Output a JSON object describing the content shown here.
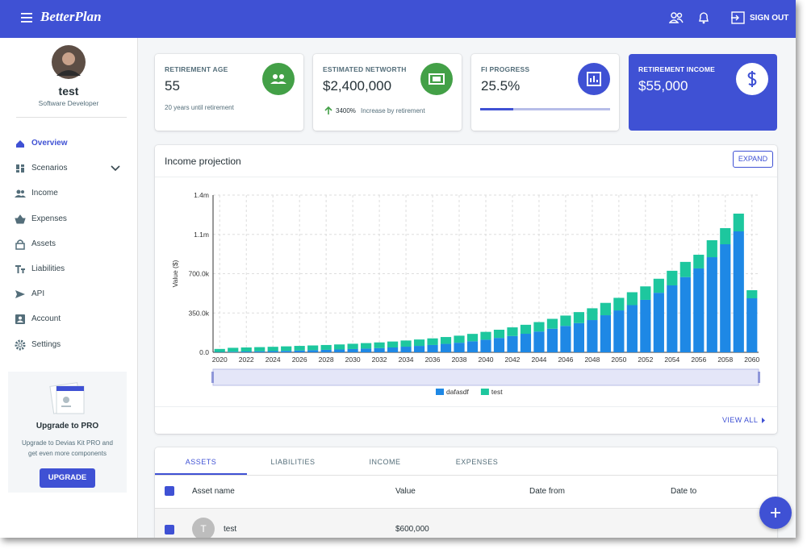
{
  "header": {
    "brand": "BetterPlan",
    "sign_out": "SIGN OUT"
  },
  "sidebar": {
    "user": {
      "name": "test",
      "role": "Software Developer"
    },
    "nav": [
      "Overview",
      "Scenarios",
      "Income",
      "Expenses",
      "Assets",
      "Liabilities",
      "API",
      "Account",
      "Settings"
    ],
    "promo": {
      "title": "Upgrade to PRO",
      "text": "Upgrade to Devias Kit PRO and get even more components",
      "button": "UPGRADE"
    }
  },
  "cards": [
    {
      "label": "RETIREMENT AGE",
      "value": "55",
      "note": "20 years until retirement"
    },
    {
      "label": "ESTIMATED NETWORTH",
      "value": "$2,400,000",
      "change": "3400%",
      "note": "Increase by retirement"
    },
    {
      "label": "FI PROGRESS",
      "value": "25.5%"
    },
    {
      "label": "RETIREMENT INCOME",
      "value": "$55,000"
    }
  ],
  "chart_panel": {
    "title": "Income projection",
    "expand": "EXPAND",
    "view_all": "VIEW ALL"
  },
  "chart_data": {
    "type": "bar",
    "stacked": true,
    "y_label": "Value ($)",
    "categories": [
      2020,
      null,
      2022,
      null,
      2024,
      null,
      2026,
      null,
      2028,
      null,
      2030,
      null,
      2032,
      null,
      2034,
      null,
      2036,
      null,
      2038,
      null,
      2040,
      null,
      2042,
      null,
      2044,
      null,
      2046,
      null,
      2048,
      null,
      2050,
      null,
      2052,
      null,
      2054,
      null,
      2056,
      null,
      2058,
      null,
      2060
    ],
    "series": [
      {
        "name": "dafasdf",
        "color": "#1e88e5",
        "values": [
          3000,
          5000,
          7000,
          9000,
          11000,
          13000,
          16000,
          19000,
          22000,
          25000,
          29000,
          33000,
          37000,
          43000,
          50000,
          57000,
          65000,
          75000,
          85000,
          98000,
          112000,
          128000,
          145000,
          165000,
          185000,
          210000,
          235000,
          260000,
          287000,
          330000,
          373000,
          420000,
          467000,
          530000,
          596000,
          670000,
          747000,
          847000,
          962000,
          1077000,
          481000
        ]
      },
      {
        "name": "test",
        "color": "#1dc79e",
        "values": [
          27000,
          35000,
          36000,
          37000,
          38000,
          40000,
          41000,
          42000,
          43000,
          45000,
          47000,
          49000,
          51000,
          53000,
          55000,
          57000,
          59000,
          61000,
          63000,
          66000,
          70000,
          73000,
          77000,
          80000,
          84000,
          88000,
          92000,
          98000,
          105000,
          110000,
          112000,
          115000,
          120000,
          125000,
          130000,
          135000,
          122000,
          151000,
          144000,
          158000,
          72000
        ]
      }
    ],
    "ylim": [
      0,
      1400000
    ],
    "yticks": [
      {
        "value": 0,
        "label": "0.0"
      },
      {
        "value": 350000,
        "label": "350.0k"
      },
      {
        "value": 700000,
        "label": "700.0k"
      },
      {
        "value": 1050000,
        "label": "1.1m"
      },
      {
        "value": 1400000,
        "label": "1.4m"
      }
    ],
    "grid": true,
    "legend": "bottom"
  },
  "tabs": [
    "ASSETS",
    "LIABILITIES",
    "INCOME",
    "EXPENSES"
  ],
  "table": {
    "columns": [
      "Asset name",
      "Value",
      "Date from",
      "Date to"
    ],
    "rows": [
      {
        "avatar": "T",
        "name": "test",
        "value": "$600,000"
      }
    ]
  }
}
